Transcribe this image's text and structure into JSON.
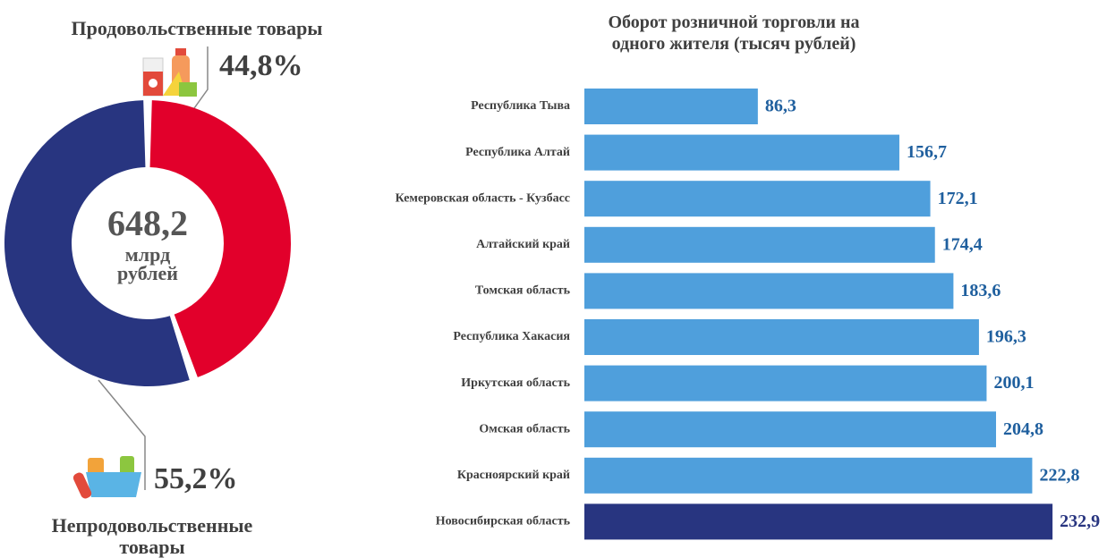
{
  "chart_data": [
    {
      "type": "donut",
      "categories": [
        "Продовольственные товары",
        "Непродовольственные товары"
      ],
      "values": [
        44.8,
        55.2
      ],
      "value_labels": [
        "44,8%",
        "55,2%"
      ],
      "colors": [
        "#e2002b",
        "#283580"
      ],
      "center_label": "648,2",
      "center_unit": "млрд рублей"
    },
    {
      "type": "hbar",
      "title": "Оборот розничной торговли на одного жителя (тысяч рублей)",
      "categories": [
        "Республика Тыва",
        "Республика Алтай",
        "Кемеровская область - Кузбасс",
        "Алтайский край",
        "Томская область",
        "Республика Хакасия",
        "Иркутская область",
        "Омская область",
        "Красноярский край",
        "Новосибирская область"
      ],
      "values": [
        86.3,
        156.7,
        172.1,
        174.4,
        183.6,
        196.3,
        200.1,
        204.8,
        222.8,
        232.9
      ],
      "value_labels": [
        "86,3",
        "156,7",
        "172,1",
        "174,4",
        "183,6",
        "196,3",
        "200,1",
        "204,8",
        "222,8",
        "232,9"
      ],
      "colors": [
        "#4f9fdc",
        "#4f9fdc",
        "#4f9fdc",
        "#4f9fdc",
        "#4f9fdc",
        "#4f9fdc",
        "#4f9fdc",
        "#4f9fdc",
        "#4f9fdc",
        "#283580"
      ],
      "xlim": [
        0,
        260
      ]
    }
  ]
}
